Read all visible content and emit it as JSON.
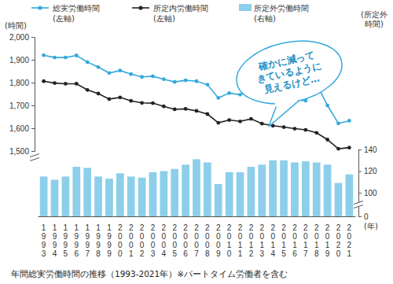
{
  "chart_data": {
    "type": "line",
    "title": "年間総実労働時間の推移（1993-2021年）※パートタイム労働者を含む",
    "x_label": "(年)",
    "y_label": "(時間)",
    "y2_label": "(所定外\n時間)",
    "annotation": "確かに減って\nきているように\n見えるけど…",
    "categories": [
      "1993",
      "1994",
      "1995",
      "1996",
      "1997",
      "1998",
      "1999",
      "2000",
      "2001",
      "2002",
      "2003",
      "2004",
      "2005",
      "2006",
      "2007",
      "2008",
      "2009",
      "2010",
      "2011",
      "2012",
      "2013",
      "2014",
      "2015",
      "2016",
      "2017",
      "2018",
      "2019",
      "2020",
      "2021"
    ],
    "ylim": [
      1500,
      2000
    ],
    "yticks": [
      {
        "value": 1500,
        "label": "1,500"
      },
      {
        "value": 1600,
        "label": "1,600"
      },
      {
        "value": 1700,
        "label": "1,700"
      },
      {
        "value": 1800,
        "label": "1,800"
      },
      {
        "value": 1900,
        "label": "1,900"
      },
      {
        "value": 2000,
        "label": "2,000"
      }
    ],
    "y2lim": [
      0,
      140
    ],
    "y2ticks": [
      0,
      100,
      120,
      140
    ],
    "grid": false,
    "legend": "top",
    "series": [
      {
        "name": "総実労働時間(左軸)",
        "type": "line",
        "color": "#35a9dc",
        "marker": "circle",
        "values": [
          1920,
          1910,
          1910,
          1919,
          1890,
          1868,
          1842,
          1853,
          1837,
          1825,
          1828,
          1815,
          1803,
          1810,
          1806,
          1791,
          1733,
          1754,
          1747,
          1765,
          1746,
          1741,
          1734,
          1724,
          1721,
          1795,
          1700,
          1621,
          1633
        ]
      },
      {
        "name": "所定内労働時間(左軸)",
        "type": "line",
        "color": "#222222",
        "marker": "circle",
        "values": [
          1806,
          1798,
          1795,
          1795,
          1768,
          1752,
          1728,
          1735,
          1720,
          1711,
          1710,
          1696,
          1683,
          1685,
          1676,
          1662,
          1624,
          1636,
          1630,
          1641,
          1620,
          1611,
          1605,
          1598,
          1593,
          1580,
          1550,
          1510,
          1515
        ]
      },
      {
        "name": "所定外労働時間(右軸)",
        "type": "bar",
        "axis": "y2",
        "color": "#8dcfea",
        "values": [
          115,
          112,
          115,
          124,
          123,
          115,
          113,
          118,
          115,
          114,
          119,
          120,
          122,
          126,
          131,
          128,
          108,
          119,
          119,
          124,
          126,
          130,
          130,
          128,
          129,
          128,
          126,
          109,
          117
        ]
      }
    ]
  }
}
